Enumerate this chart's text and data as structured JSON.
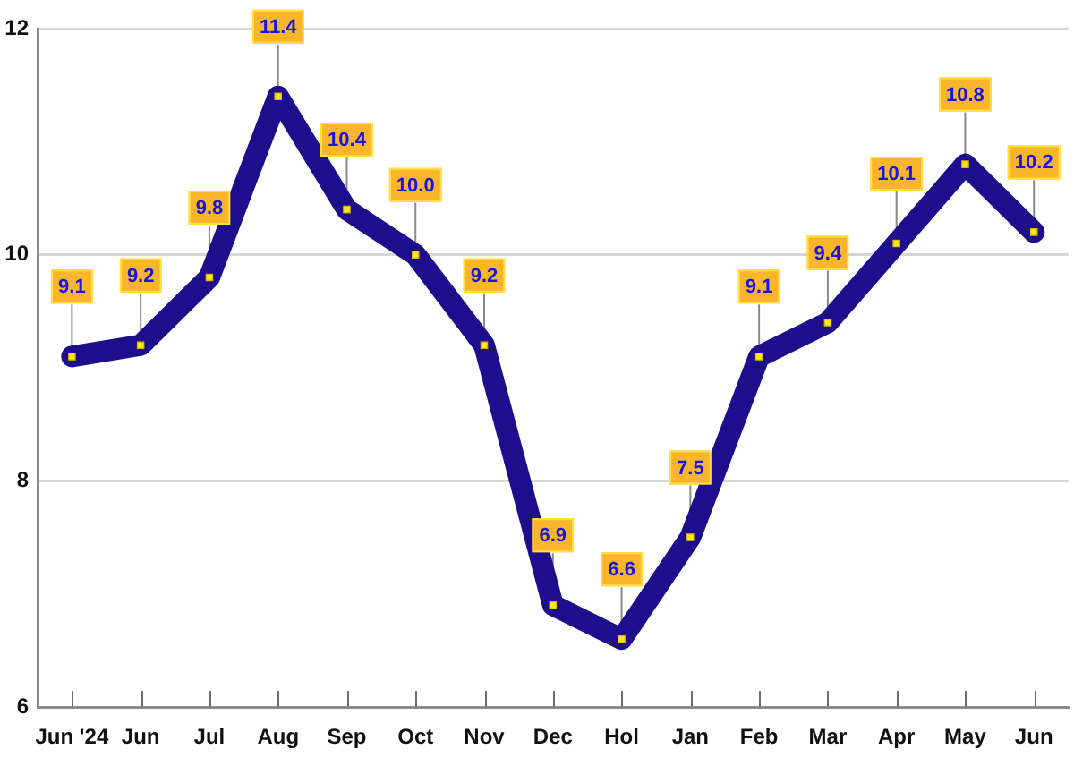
{
  "chart_data": {
    "type": "line",
    "categories": [
      "Jun '24",
      "Jun",
      "Jul",
      "Aug",
      "Sep",
      "Oct",
      "Nov",
      "Dec",
      "Hol",
      "Jan",
      "Feb",
      "Mar",
      "Apr",
      "May",
      "Jun"
    ],
    "series": [
      {
        "color": "#1d0e8e",
        "values": [
          9.1,
          9.2,
          9.8,
          11.4,
          10.4,
          10.0,
          9.2,
          6.9,
          6.6,
          7.5,
          9.1,
          9.4,
          10.1,
          10.8,
          10.2
        ],
        "value_labels": [
          "9.1",
          "9.2",
          "9.8",
          "11.4",
          "10.4",
          "10.0",
          "9.2",
          "6.9",
          "6.6",
          "7.5",
          "9.1",
          "9.4",
          "10.1",
          "10.8",
          "10.2"
        ]
      }
    ],
    "ylim": [
      6,
      12
    ],
    "yticks": [
      6,
      8,
      10,
      12
    ],
    "grid": "y",
    "legend": false,
    "marker": "square",
    "line_style": "solid"
  }
}
